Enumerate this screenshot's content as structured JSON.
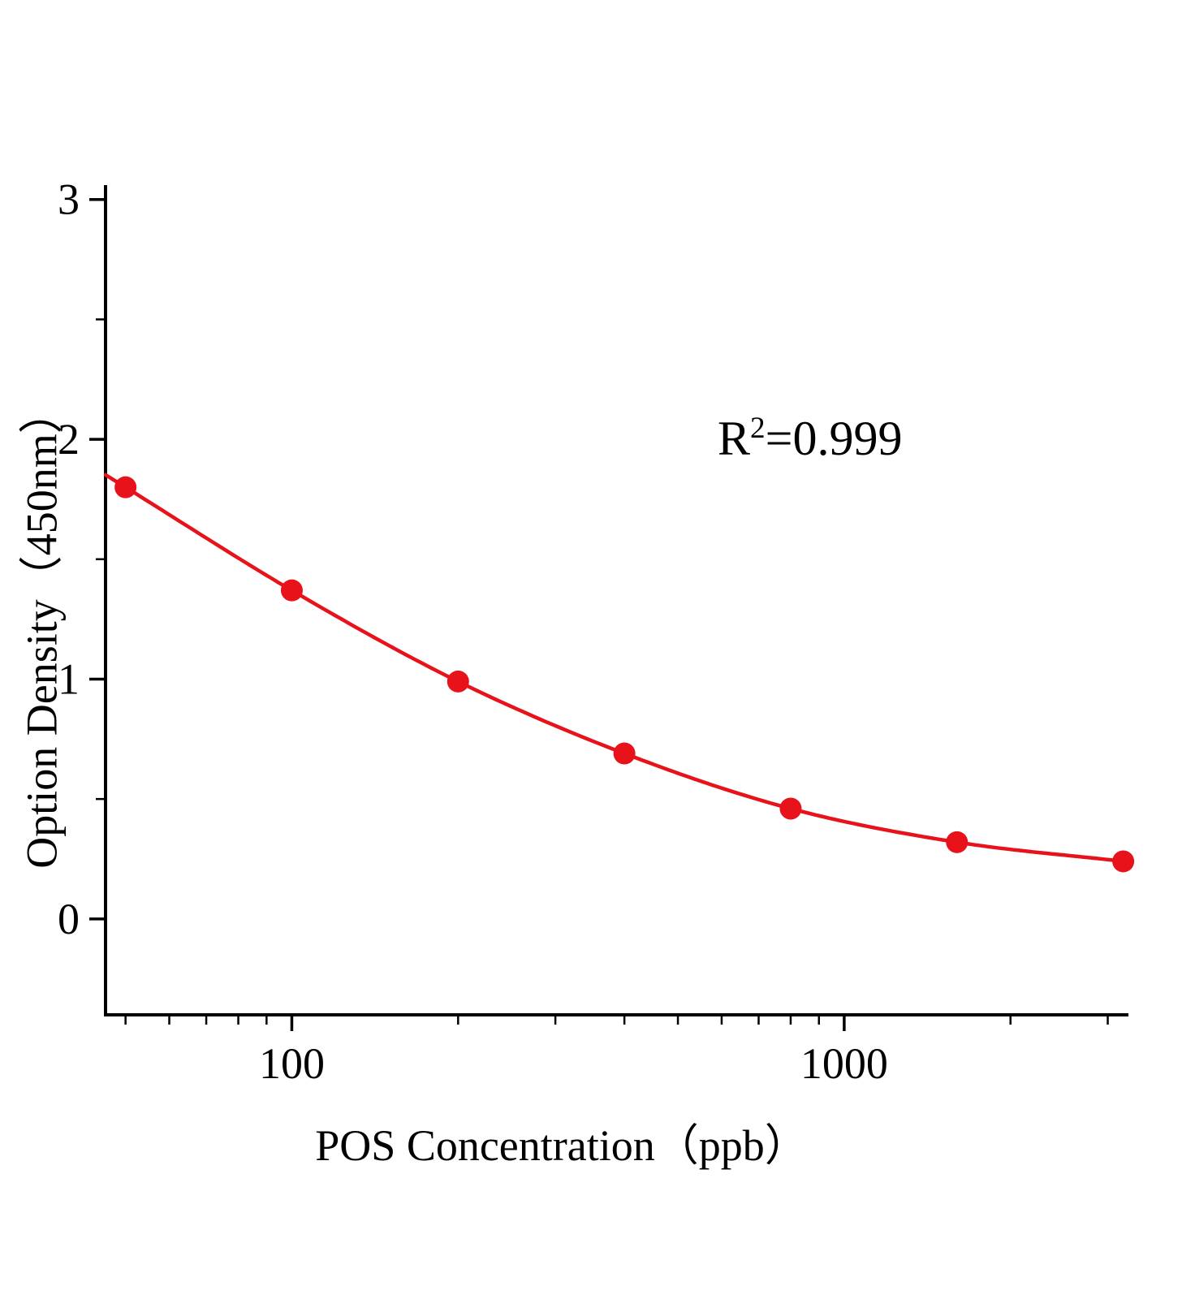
{
  "page": {
    "background": "#ffffff"
  },
  "chart_data": {
    "type": "scatter",
    "title": "",
    "xlabel": "POS Concentration（ppb）",
    "ylabel": "Option Density（450nm）",
    "annotation": {
      "base": "R",
      "sup": "2",
      "rest": "=0.999"
    },
    "x_scale": "log",
    "x": [
      50,
      100,
      200,
      400,
      800,
      1600,
      3200
    ],
    "y": [
      1.8,
      1.37,
      0.99,
      0.69,
      0.46,
      0.32,
      0.24
    ],
    "fit": "smooth curve through standards (4PL-style fit)",
    "x_ticks": [
      100,
      1000
    ],
    "x_tick_labels": [
      "100",
      "1000"
    ],
    "x_minor_ticks": [
      50,
      60,
      70,
      80,
      90,
      200,
      300,
      400,
      500,
      600,
      700,
      800,
      900,
      2000,
      3000
    ],
    "y_ticks": [
      0,
      1,
      2,
      3
    ],
    "y_tick_labels": [
      "0",
      "1",
      "2",
      "3"
    ],
    "y_minor_ticks": [
      0.5,
      1.5,
      2.5
    ],
    "x_range": [
      46,
      3270
    ],
    "y_range": [
      -0.4,
      3.06
    ],
    "grid": "off",
    "legend": "none",
    "colors": {
      "points": "#e8121b",
      "curve": "#e8121b",
      "axis": "#000000",
      "text": "#000000"
    },
    "marker_size": 13.5
  }
}
